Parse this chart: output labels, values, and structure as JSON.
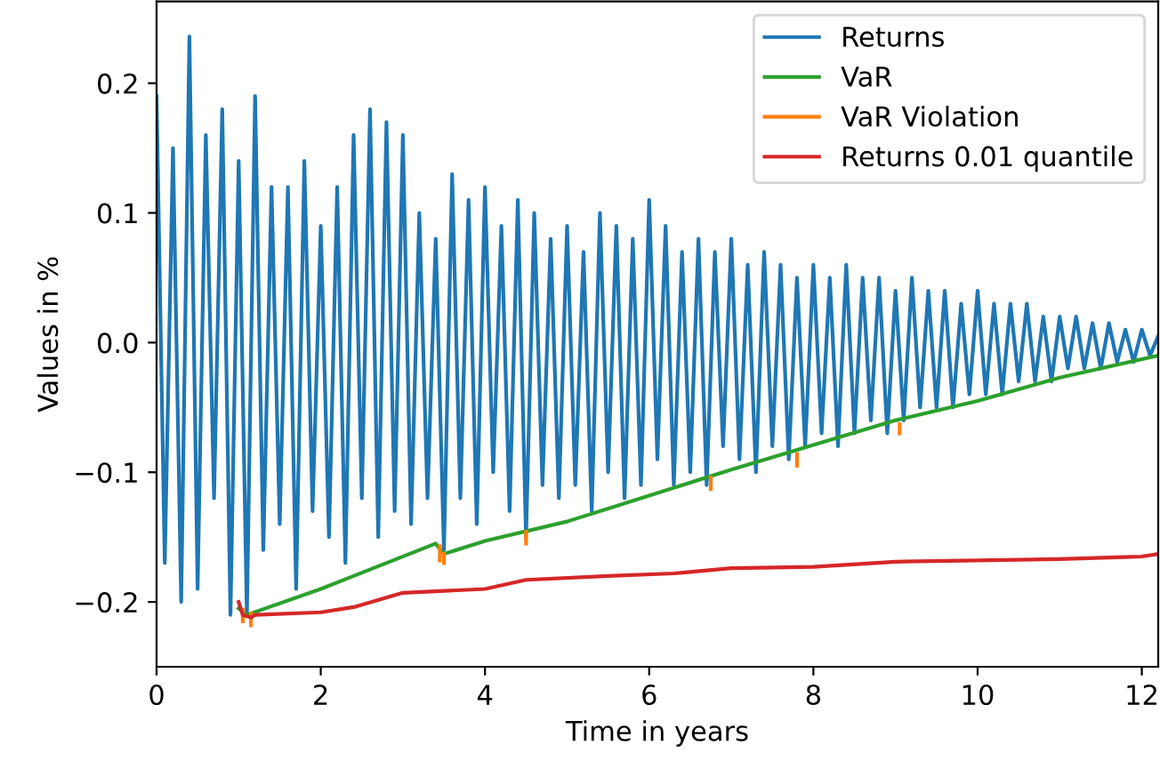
{
  "chart_data": {
    "type": "line",
    "xlabel": "Time in years",
    "ylabel": "Values in %",
    "xlim": [
      0,
      12.2
    ],
    "ylim": [
      -0.25,
      0.263
    ],
    "xticks": [
      0,
      2,
      4,
      6,
      8,
      10,
      12
    ],
    "yticks": [
      {
        "value": -0.2,
        "label": "−0.2"
      },
      {
        "value": -0.1,
        "label": "−0.1"
      },
      {
        "value": 0.0,
        "label": "0.0"
      },
      {
        "value": 0.1,
        "label": "0.1"
      },
      {
        "value": 0.2,
        "label": "0.2"
      }
    ],
    "grid": false,
    "legend": "top right",
    "marker": "none",
    "line_style": "solid",
    "series": [
      {
        "name": "Returns",
        "color": "#1f77b4",
        "x": [
          0.0,
          0.1,
          0.2,
          0.3,
          0.4,
          0.5,
          0.6,
          0.7,
          0.8,
          0.9,
          1.0,
          1.1,
          1.2,
          1.3,
          1.4,
          1.5,
          1.6,
          1.7,
          1.8,
          1.9,
          2.0,
          2.1,
          2.2,
          2.3,
          2.4,
          2.5,
          2.6,
          2.7,
          2.8,
          2.9,
          3.0,
          3.1,
          3.2,
          3.3,
          3.4,
          3.5,
          3.6,
          3.7,
          3.8,
          3.9,
          4.0,
          4.1,
          4.2,
          4.3,
          4.4,
          4.5,
          4.6,
          4.7,
          4.8,
          4.9,
          5.0,
          5.1,
          5.2,
          5.3,
          5.4,
          5.5,
          5.6,
          5.7,
          5.8,
          5.9,
          6.0,
          6.1,
          6.2,
          6.3,
          6.4,
          6.5,
          6.6,
          6.7,
          6.8,
          6.9,
          7.0,
          7.1,
          7.2,
          7.3,
          7.4,
          7.5,
          7.6,
          7.7,
          7.8,
          7.9,
          8.0,
          8.1,
          8.2,
          8.3,
          8.4,
          8.5,
          8.6,
          8.7,
          8.8,
          8.9,
          9.0,
          9.1,
          9.2,
          9.3,
          9.4,
          9.5,
          9.6,
          9.7,
          9.8,
          9.9,
          10.0,
          10.1,
          10.2,
          10.3,
          10.4,
          10.5,
          10.6,
          10.7,
          10.8,
          10.9,
          11.0,
          11.1,
          11.2,
          11.3,
          11.4,
          11.5,
          11.6,
          11.7,
          11.8,
          11.9,
          12.0,
          12.1,
          12.2
        ],
        "values": [
          0.19,
          -0.17,
          0.15,
          -0.2,
          0.236,
          -0.19,
          0.16,
          -0.12,
          0.18,
          -0.21,
          0.14,
          -0.21,
          0.19,
          -0.16,
          0.12,
          -0.14,
          0.12,
          -0.19,
          0.14,
          -0.13,
          0.09,
          -0.15,
          0.12,
          -0.17,
          0.16,
          -0.12,
          0.18,
          -0.15,
          0.17,
          -0.13,
          0.16,
          -0.14,
          0.1,
          -0.12,
          0.08,
          -0.16,
          0.13,
          -0.12,
          0.11,
          -0.14,
          0.12,
          -0.1,
          0.09,
          -0.13,
          0.11,
          -0.15,
          0.1,
          -0.11,
          0.08,
          -0.12,
          0.09,
          -0.11,
          0.07,
          -0.13,
          0.1,
          -0.1,
          0.09,
          -0.12,
          0.08,
          -0.11,
          0.11,
          -0.09,
          0.09,
          -0.11,
          0.07,
          -0.1,
          0.08,
          -0.11,
          0.07,
          -0.08,
          0.08,
          -0.09,
          0.06,
          -0.1,
          0.07,
          -0.08,
          0.06,
          -0.09,
          0.05,
          -0.08,
          0.06,
          -0.07,
          0.05,
          -0.08,
          0.06,
          -0.07,
          0.05,
          -0.06,
          0.05,
          -0.07,
          0.04,
          -0.06,
          0.05,
          -0.05,
          0.04,
          -0.05,
          0.04,
          -0.05,
          0.03,
          -0.04,
          0.04,
          -0.04,
          0.03,
          -0.04,
          0.03,
          -0.03,
          0.03,
          -0.03,
          0.02,
          -0.03,
          0.02,
          -0.02,
          0.02,
          -0.02,
          0.015,
          -0.02,
          0.015,
          -0.015,
          0.01,
          -0.015,
          0.01,
          -0.01,
          0.005
        ]
      },
      {
        "name": "VaR",
        "color": "#2ca02c",
        "x": [
          1.0,
          1.1,
          2.0,
          2.4,
          3.4,
          3.5,
          4.0,
          5.0,
          6.0,
          7.0,
          8.0,
          9.0,
          10.0,
          11.0,
          12.2
        ],
        "values": [
          -0.205,
          -0.21,
          -0.19,
          -0.18,
          -0.155,
          -0.163,
          -0.153,
          -0.138,
          -0.118,
          -0.098,
          -0.079,
          -0.06,
          -0.045,
          -0.027,
          -0.01
        ]
      },
      {
        "name": "VaR Violation",
        "color": "#ff7f0e",
        "x": [
          1.05,
          1.05
        ],
        "values": [
          -0.206,
          -0.215
        ]
      },
      {
        "color": "#ff7f0e",
        "x": [
          1.15,
          1.15
        ],
        "values": [
          -0.209,
          -0.218
        ]
      },
      {
        "color": "#ff7f0e",
        "x": [
          3.45,
          3.45
        ],
        "values": [
          -0.157,
          -0.168
        ]
      },
      {
        "color": "#ff7f0e",
        "x": [
          3.5,
          3.5
        ],
        "values": [
          -0.163,
          -0.17
        ]
      },
      {
        "color": "#ff7f0e",
        "x": [
          4.5,
          4.5
        ],
        "values": [
          -0.146,
          -0.155
        ]
      },
      {
        "color": "#ff7f0e",
        "x": [
          6.75,
          6.75
        ],
        "values": [
          -0.104,
          -0.113
        ]
      },
      {
        "color": "#ff7f0e",
        "x": [
          7.8,
          7.8
        ],
        "values": [
          -0.086,
          -0.095
        ]
      },
      {
        "color": "#ff7f0e",
        "x": [
          9.05,
          9.05
        ],
        "values": [
          -0.063,
          -0.07
        ]
      },
      {
        "name": "Returns 0.01 quantile",
        "color": "#d62728",
        "x": [
          1.0,
          1.05,
          1.15,
          1.2,
          2.0,
          2.4,
          3.0,
          4.0,
          4.5,
          5.5,
          6.3,
          7.0,
          8.0,
          9.0,
          10.0,
          11.0,
          12.0,
          12.2
        ],
        "values": [
          -0.2,
          -0.21,
          -0.212,
          -0.21,
          -0.208,
          -0.204,
          -0.193,
          -0.19,
          -0.183,
          -0.18,
          -0.178,
          -0.174,
          -0.173,
          -0.169,
          -0.168,
          -0.167,
          -0.165,
          -0.163
        ]
      }
    ]
  }
}
